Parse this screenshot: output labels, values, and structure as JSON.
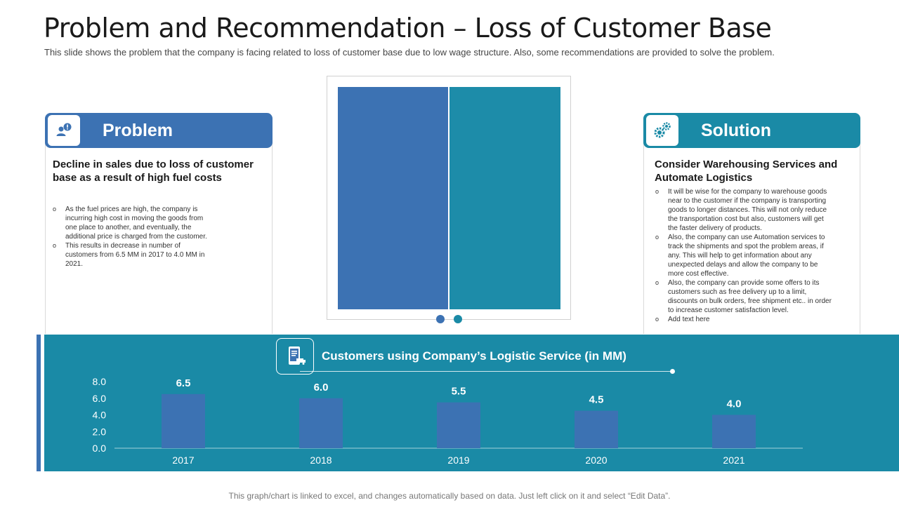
{
  "header": {
    "title": "Problem and Recommendation – Loss of Customer Base",
    "subtitle": "This slide shows the problem that the company is facing related to loss of customer base due to low wage structure. Also, some recommendations are provided to solve the problem."
  },
  "problem": {
    "label": "Problem",
    "icon": "user-alert-icon",
    "heading": "Decline in sales due to loss of customer base as a result of high fuel costs",
    "bullets": [
      "As the fuel prices are high, the company is incurring high cost in moving the goods from one place to another, and eventually, the additional price is charged from the customer.",
      "This results in decrease in number of customers from 6.5 MM in 2017 to 4.0 MM in 2021."
    ]
  },
  "solution": {
    "label": "Solution",
    "icon": "gears-icon",
    "heading": "Consider Warehousing Services and Automate Logistics",
    "bullets": [
      "It will be wise for the company to warehouse goods near to the customer if the company is transporting goods to longer distances. This will not only reduce the transportation cost but also, customers will get the faster delivery of products.",
      "Also, the company can use Automation services to track the shipments and spot the problem areas, if any. This will help to get information about any unexpected delays and allow the company to be more cost effective.",
      "Also, the company can provide some offers to its customers such as free delivery up to a limit, discounts on bulk orders, free shipment etc.. in order to increase customer satisfaction level.",
      "Add text here"
    ]
  },
  "colors": {
    "primary_blue": "#3c72b3",
    "teal": "#1a8aa6",
    "bar": "#3c72b3"
  },
  "chart_data": {
    "type": "bar",
    "title": "Customers using Company’s Logistic Service (in MM)",
    "categories": [
      "2017",
      "2018",
      "2019",
      "2020",
      "2021"
    ],
    "values": [
      6.5,
      6.0,
      5.5,
      4.5,
      4.0
    ],
    "value_labels": [
      "6.5",
      "6.0",
      "5.5",
      "4.5",
      "4.0"
    ],
    "y_ticks": [
      "0.0",
      "2.0",
      "4.0",
      "6.0",
      "8.0"
    ],
    "ylim": [
      0,
      8
    ],
    "xlabel": "",
    "ylabel": "",
    "grid": false
  },
  "footer": {
    "note": "This graph/chart is linked to excel, and changes automatically based on data. Just left click on it and select “Edit Data”."
  }
}
